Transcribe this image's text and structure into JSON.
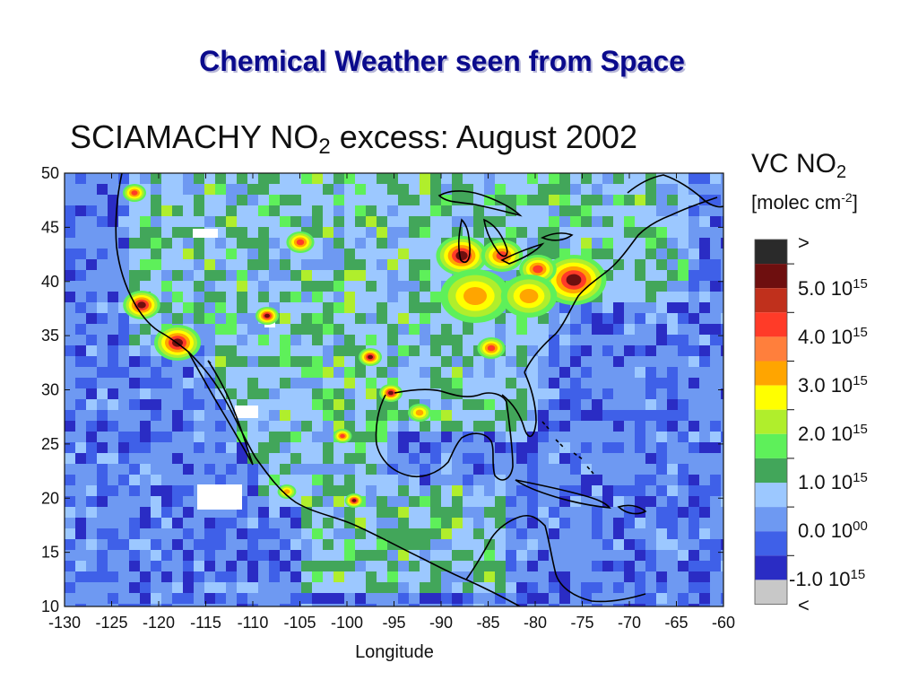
{
  "slide": {
    "title": "Chemical Weather seen from Space"
  },
  "chart": {
    "title_main": "SCIAMACHY NO",
    "title_sub": "2",
    "title_rest": " excess: August 2002",
    "x_axis_label": "Longitude",
    "x_ticks": [
      "-130",
      "-125",
      "-120",
      "-115",
      "-110",
      "-105",
      "-100",
      "-95",
      "-90",
      "-85",
      "-80",
      "-75",
      "-70",
      "-65",
      "-60"
    ],
    "y_ticks": [
      "50",
      "45",
      "40",
      "35",
      "30",
      "25",
      "20",
      "15",
      "10"
    ]
  },
  "legend": {
    "title_main": "VC NO",
    "title_sub": "2",
    "unit_main": "[molec cm",
    "unit_sup": "-2",
    "unit_end": "]",
    "colors": [
      "#2a2a2a",
      "#6e0f0f",
      "#c0301c",
      "#ff3b28",
      "#ff7f3c",
      "#ffa500",
      "#ffff00",
      "#b0ee2c",
      "#5ef05a",
      "#42a65a",
      "#9cc8ff",
      "#6e99f2",
      "#3f60e8",
      "#2a2cc4",
      "#c8c8c8"
    ],
    "labels": [
      {
        "text": ">",
        "sup": ""
      },
      {
        "text": "5.0 10",
        "sup": "15"
      },
      {
        "text": "4.0 10",
        "sup": "15"
      },
      {
        "text": "3.0 10",
        "sup": "15"
      },
      {
        "text": "2.0 10",
        "sup": "15"
      },
      {
        "text": "1.0 10",
        "sup": "15"
      },
      {
        "text": "0.0 10",
        "sup": "00"
      },
      {
        "text": "-1.0 10",
        "sup": "15"
      },
      {
        "text": "<",
        "sup": ""
      }
    ]
  }
}
